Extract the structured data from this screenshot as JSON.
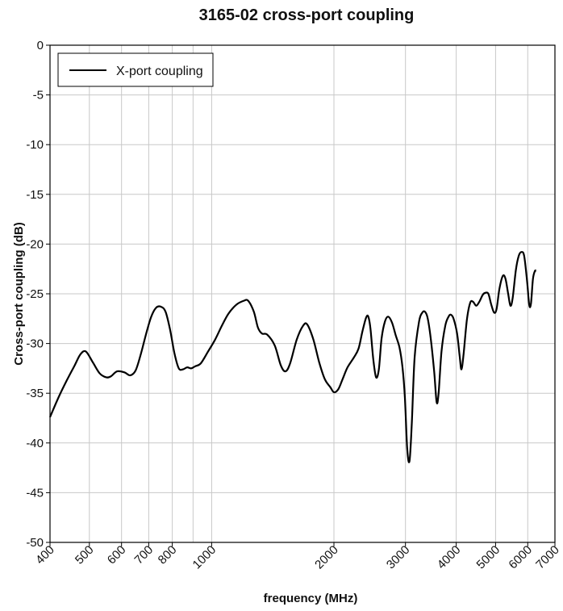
{
  "chart_data": {
    "type": "line",
    "title": "3165-02 cross-port coupling",
    "xlabel": "frequency (MHz)",
    "ylabel": "Cross-port coupling (dB)",
    "x_scale": "log",
    "xlim": [
      400,
      7000
    ],
    "ylim": [
      -50,
      0
    ],
    "x_ticks": [
      400,
      500,
      600,
      700,
      800,
      1000,
      2000,
      3000,
      4000,
      5000,
      6000,
      7000
    ],
    "x_tick_labels": [
      "400",
      "500",
      "600",
      "700",
      "800",
      "1000",
      "2000",
      "3000",
      "4000",
      "5000",
      "6000",
      "7000"
    ],
    "y_ticks": [
      0,
      -5,
      -10,
      -15,
      -20,
      -25,
      -30,
      -35,
      -40,
      -45,
      -50
    ],
    "y_tick_labels": [
      "0",
      "-5",
      "-10",
      "-15",
      "-20",
      "-25",
      "-30",
      "-35",
      "-40",
      "-45",
      "-50"
    ],
    "x_grid": [
      400,
      500,
      600,
      700,
      800,
      900,
      1000,
      2000,
      3000,
      4000,
      5000,
      6000,
      7000
    ],
    "grid": true,
    "legend_position": "top-left",
    "series": [
      {
        "name": "X-port coupling",
        "color": "#000000",
        "points": [
          [
            400,
            -37.4
          ],
          [
            420,
            -35.4
          ],
          [
            440,
            -33.7
          ],
          [
            460,
            -32.2
          ],
          [
            475,
            -31.1
          ],
          [
            490,
            -30.8
          ],
          [
            510,
            -31.9
          ],
          [
            530,
            -33.0
          ],
          [
            550,
            -33.4
          ],
          [
            565,
            -33.3
          ],
          [
            585,
            -32.8
          ],
          [
            610,
            -32.9
          ],
          [
            630,
            -33.2
          ],
          [
            650,
            -32.7
          ],
          [
            670,
            -31.0
          ],
          [
            690,
            -29.0
          ],
          [
            710,
            -27.3
          ],
          [
            730,
            -26.4
          ],
          [
            750,
            -26.3
          ],
          [
            770,
            -26.8
          ],
          [
            790,
            -28.6
          ],
          [
            810,
            -31.0
          ],
          [
            830,
            -32.5
          ],
          [
            850,
            -32.6
          ],
          [
            870,
            -32.4
          ],
          [
            890,
            -32.5
          ],
          [
            910,
            -32.3
          ],
          [
            940,
            -32.0
          ],
          [
            980,
            -30.8
          ],
          [
            1020,
            -29.6
          ],
          [
            1060,
            -28.2
          ],
          [
            1100,
            -27.0
          ],
          [
            1150,
            -26.1
          ],
          [
            1200,
            -25.7
          ],
          [
            1230,
            -25.7
          ],
          [
            1270,
            -26.8
          ],
          [
            1300,
            -28.4
          ],
          [
            1330,
            -29.0
          ],
          [
            1370,
            -29.1
          ],
          [
            1430,
            -30.2
          ],
          [
            1480,
            -32.2
          ],
          [
            1520,
            -32.8
          ],
          [
            1560,
            -32.0
          ],
          [
            1620,
            -29.6
          ],
          [
            1680,
            -28.2
          ],
          [
            1720,
            -28.1
          ],
          [
            1780,
            -29.6
          ],
          [
            1840,
            -31.9
          ],
          [
            1900,
            -33.6
          ],
          [
            1960,
            -34.4
          ],
          [
            2000,
            -34.9
          ],
          [
            2050,
            -34.6
          ],
          [
            2100,
            -33.6
          ],
          [
            2160,
            -32.4
          ],
          [
            2240,
            -31.4
          ],
          [
            2300,
            -30.5
          ],
          [
            2350,
            -28.8
          ],
          [
            2400,
            -27.4
          ],
          [
            2430,
            -27.3
          ],
          [
            2460,
            -28.5
          ],
          [
            2500,
            -31.6
          ],
          [
            2540,
            -33.4
          ],
          [
            2580,
            -32.6
          ],
          [
            2620,
            -29.5
          ],
          [
            2670,
            -27.8
          ],
          [
            2720,
            -27.3
          ],
          [
            2780,
            -27.9
          ],
          [
            2840,
            -29.2
          ],
          [
            2900,
            -30.4
          ],
          [
            2950,
            -32.4
          ],
          [
            2990,
            -35.4
          ],
          [
            3030,
            -40.6
          ],
          [
            3070,
            -41.8
          ],
          [
            3110,
            -38.0
          ],
          [
            3160,
            -31.4
          ],
          [
            3240,
            -27.8
          ],
          [
            3300,
            -26.9
          ],
          [
            3350,
            -26.8
          ],
          [
            3400,
            -27.4
          ],
          [
            3460,
            -29.4
          ],
          [
            3530,
            -32.8
          ],
          [
            3580,
            -35.9
          ],
          [
            3620,
            -35.0
          ],
          [
            3680,
            -30.8
          ],
          [
            3760,
            -28.2
          ],
          [
            3830,
            -27.3
          ],
          [
            3880,
            -27.1
          ],
          [
            3940,
            -27.5
          ],
          [
            4020,
            -29.0
          ],
          [
            4080,
            -31.3
          ],
          [
            4120,
            -32.6
          ],
          [
            4170,
            -31.1
          ],
          [
            4250,
            -27.6
          ],
          [
            4330,
            -25.9
          ],
          [
            4400,
            -25.8
          ],
          [
            4480,
            -26.2
          ],
          [
            4560,
            -25.8
          ],
          [
            4650,
            -25.1
          ],
          [
            4720,
            -24.9
          ],
          [
            4800,
            -25.0
          ],
          [
            4880,
            -26.1
          ],
          [
            4960,
            -26.9
          ],
          [
            5030,
            -26.5
          ],
          [
            5110,
            -24.5
          ],
          [
            5210,
            -23.2
          ],
          [
            5290,
            -23.5
          ],
          [
            5370,
            -25.0
          ],
          [
            5440,
            -26.2
          ],
          [
            5510,
            -25.4
          ],
          [
            5610,
            -22.6
          ],
          [
            5700,
            -21.2
          ],
          [
            5790,
            -20.8
          ],
          [
            5880,
            -21.2
          ],
          [
            5980,
            -23.8
          ],
          [
            6050,
            -26.1
          ],
          [
            6110,
            -26.0
          ],
          [
            6180,
            -23.5
          ],
          [
            6250,
            -22.7
          ],
          [
            6290,
            -22.7
          ]
        ]
      }
    ]
  }
}
